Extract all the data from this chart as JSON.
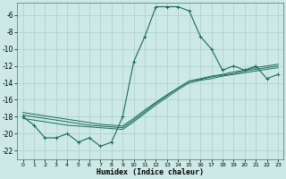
{
  "title": "",
  "xlabel": "Humidex (Indice chaleur)",
  "bg_color": "#cce9e5",
  "grid_color": "#aacfcb",
  "line_color": "#1a6b5a",
  "x_values": [
    0,
    1,
    2,
    3,
    4,
    5,
    6,
    7,
    8,
    9,
    10,
    11,
    12,
    13,
    14,
    15,
    16,
    17,
    18,
    19,
    20,
    21,
    22,
    23
  ],
  "main_y": [
    -18,
    -19,
    -20.5,
    -20.5,
    -20,
    -21,
    -20.5,
    -21.5,
    -21,
    -18,
    -11.5,
    -8.5,
    -5,
    -5,
    -5,
    -5.5,
    -8.5,
    -10,
    -12.5,
    -12,
    -12.5,
    -12,
    -13.5,
    -13
  ],
  "trend1_y": [
    -17.5,
    -17.7,
    -17.9,
    -18.1,
    -18.3,
    -18.5,
    -18.7,
    -18.9,
    -19.0,
    -19.1,
    -18.2,
    -17.2,
    -16.3,
    -15.4,
    -14.6,
    -13.8,
    -13.5,
    -13.2,
    -13.0,
    -12.7,
    -12.5,
    -12.2,
    -12.0,
    -11.8
  ],
  "trend2_y": [
    -17.8,
    -18.0,
    -18.2,
    -18.4,
    -18.6,
    -18.8,
    -19.0,
    -19.1,
    -19.2,
    -19.3,
    -18.4,
    -17.4,
    -16.4,
    -15.5,
    -14.6,
    -13.8,
    -13.6,
    -13.3,
    -13.1,
    -12.9,
    -12.6,
    -12.4,
    -12.2,
    -12.0
  ],
  "trend3_y": [
    -18.2,
    -18.4,
    -18.6,
    -18.8,
    -19.0,
    -19.1,
    -19.2,
    -19.3,
    -19.4,
    -19.5,
    -18.6,
    -17.6,
    -16.6,
    -15.7,
    -14.8,
    -14.0,
    -13.7,
    -13.5,
    -13.2,
    -13.0,
    -12.8,
    -12.6,
    -12.4,
    -12.2
  ],
  "xlim": [
    -0.5,
    23.5
  ],
  "ylim": [
    -23,
    -4.5
  ],
  "yticks": [
    -22,
    -20,
    -18,
    -16,
    -14,
    -12,
    -10,
    -8,
    -6
  ],
  "xticks": [
    0,
    1,
    2,
    3,
    4,
    5,
    6,
    7,
    8,
    9,
    10,
    11,
    12,
    13,
    14,
    15,
    16,
    17,
    18,
    19,
    20,
    21,
    22,
    23
  ]
}
